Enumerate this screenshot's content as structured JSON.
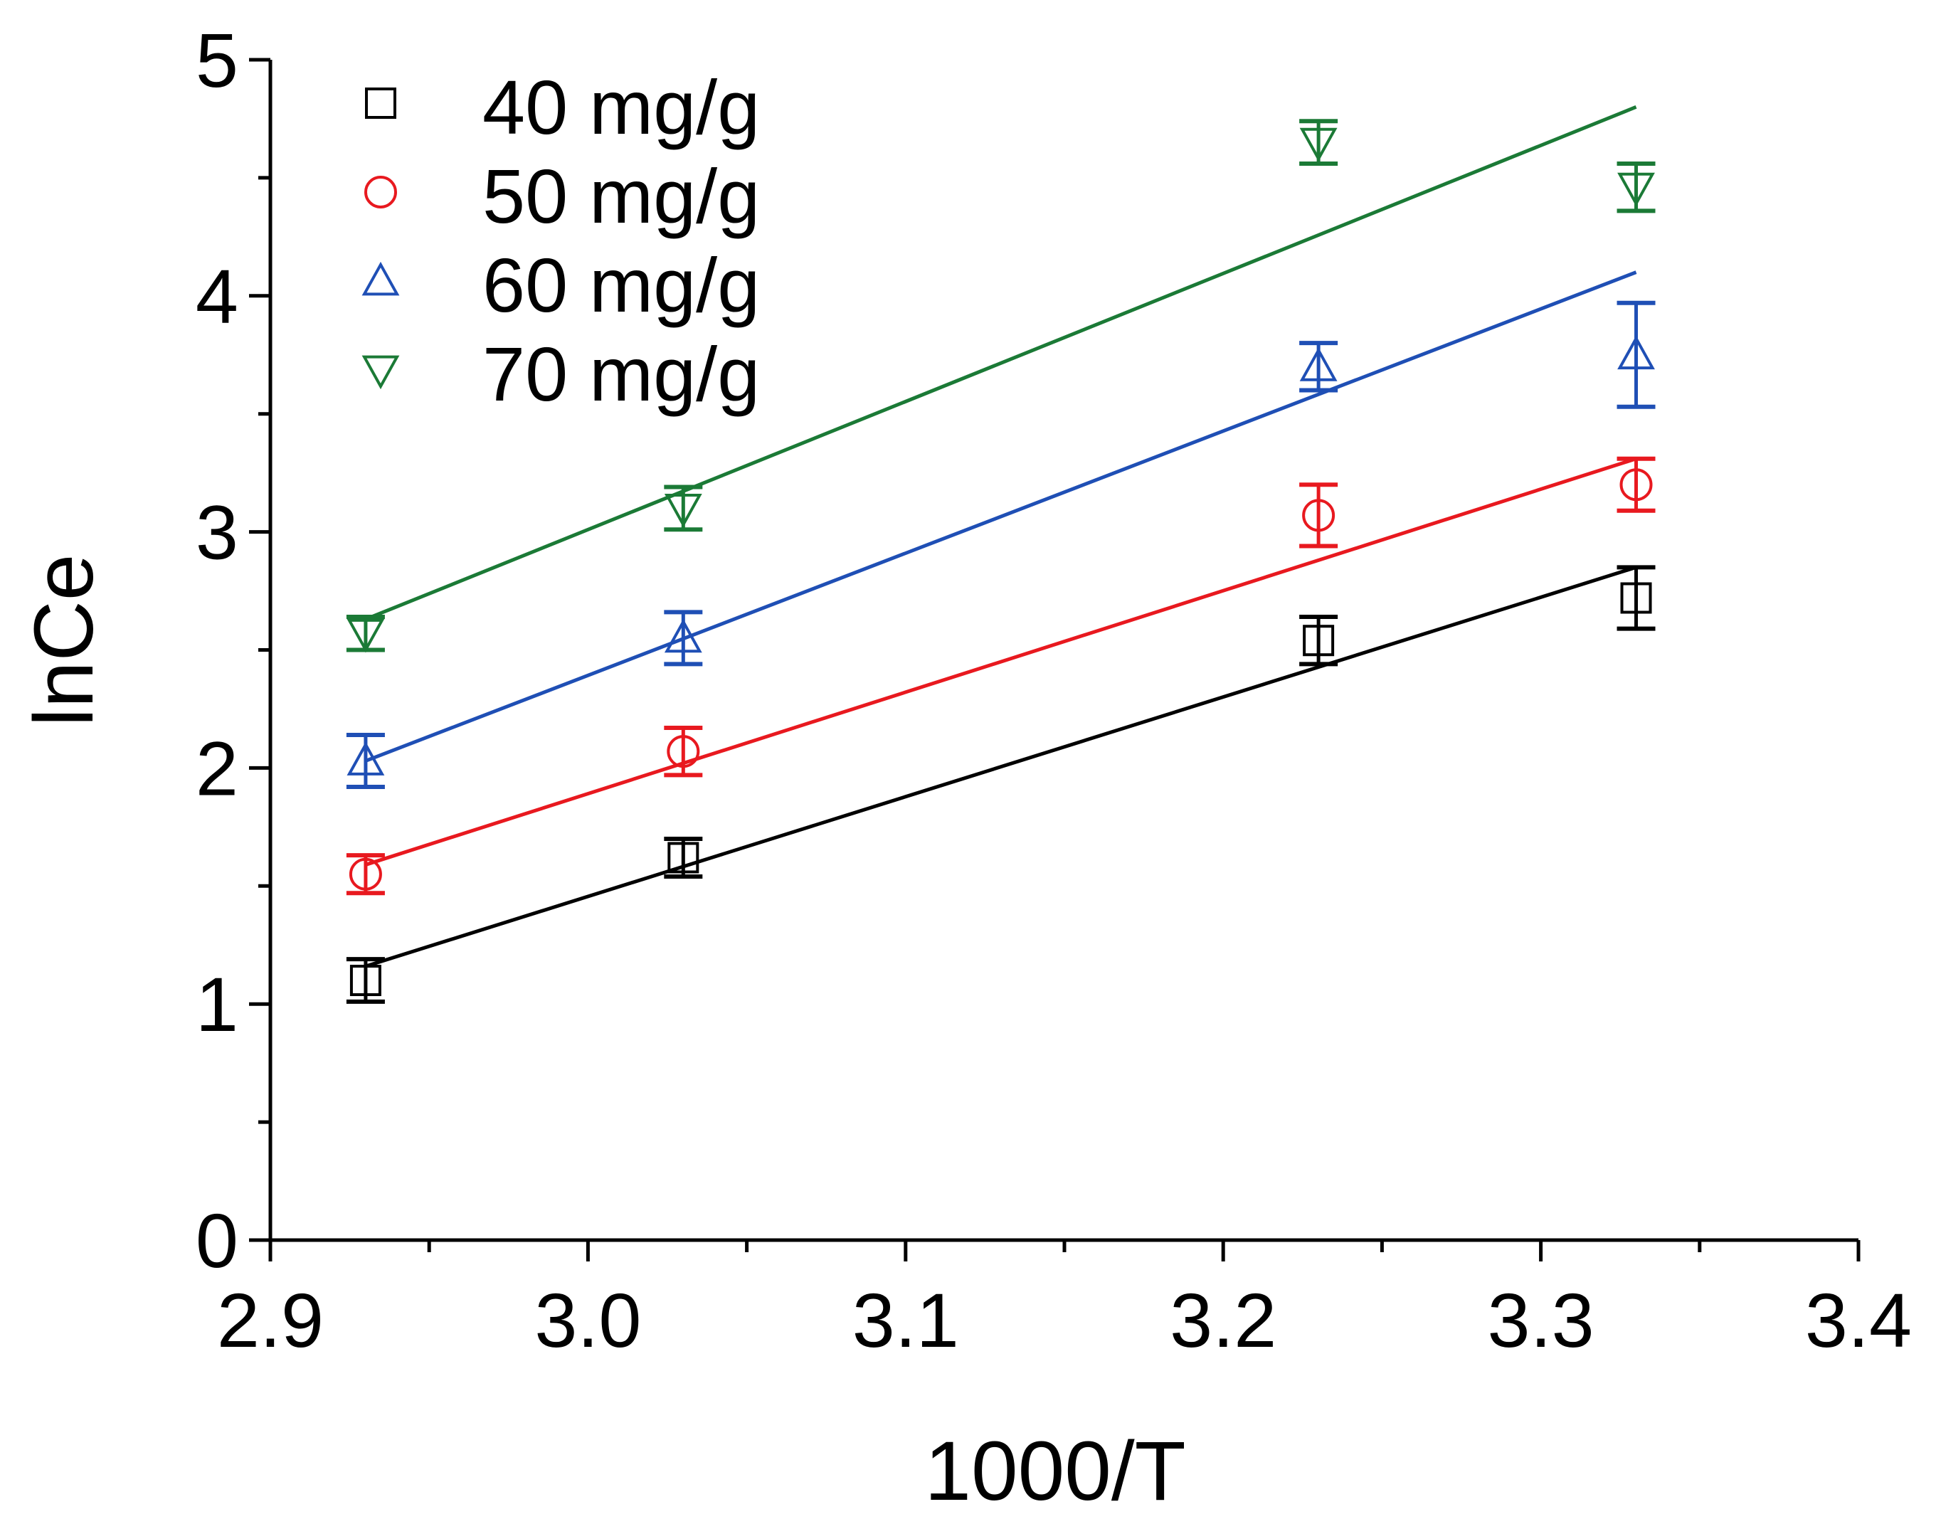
{
  "chart_data": {
    "type": "scatter",
    "title": "",
    "xlabel": "1000/T",
    "ylabel": "lnCe",
    "xlim": [
      2.9,
      3.4
    ],
    "ylim": [
      0,
      5
    ],
    "xticks": [
      "2.9",
      "3.0",
      "3.1",
      "3.2",
      "3.3",
      "3.4"
    ],
    "yticks": [
      "0",
      "1",
      "2",
      "3",
      "4",
      "5"
    ],
    "legend_position": "top-left",
    "x": [
      2.93,
      3.03,
      3.23,
      3.33
    ],
    "series": [
      {
        "name": "40 mg/g",
        "color": "#000000",
        "marker": "square",
        "values": [
          1.1,
          1.62,
          2.54,
          2.72
        ],
        "errors": [
          0.09,
          0.08,
          0.1,
          0.13
        ],
        "fit": {
          "x": [
            2.93,
            3.33
          ],
          "y": [
            1.16,
            2.85
          ]
        }
      },
      {
        "name": "50 mg/g",
        "color": "#e8191f",
        "marker": "circle",
        "values": [
          1.55,
          2.07,
          3.07,
          3.2
        ],
        "errors": [
          0.08,
          0.1,
          0.13,
          0.11
        ],
        "fit": {
          "x": [
            2.93,
            3.33
          ],
          "y": [
            1.59,
            3.31
          ]
        }
      },
      {
        "name": "60 mg/g",
        "color": "#1f4fb5",
        "marker": "triangle-up",
        "values": [
          2.03,
          2.55,
          3.7,
          3.75
        ],
        "errors": [
          0.11,
          0.11,
          0.1,
          0.22
        ],
        "fit": {
          "x": [
            2.93,
            3.33
          ],
          "y": [
            2.03,
            4.1
          ]
        }
      },
      {
        "name": "70 mg/g",
        "color": "#1b7a36",
        "marker": "triangle-down",
        "values": [
          2.57,
          3.1,
          4.65,
          4.46
        ],
        "errors": [
          0.07,
          0.09,
          0.09,
          0.1
        ],
        "fit": {
          "x": [
            2.93,
            3.33
          ],
          "y": [
            2.63,
            4.8
          ]
        }
      }
    ]
  }
}
